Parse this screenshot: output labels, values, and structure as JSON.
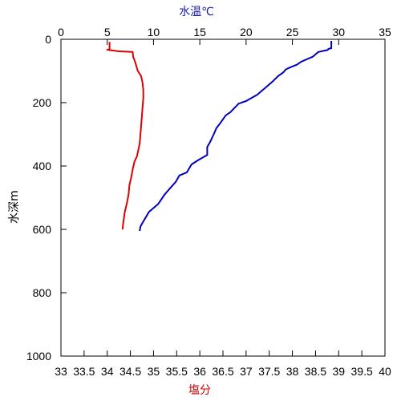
{
  "chart_data": {
    "type": "line",
    "top_axis": {
      "label": "水温℃",
      "color": "#1a1aaa",
      "range": [
        0,
        35
      ],
      "ticks": [
        "0",
        "5",
        "10",
        "15",
        "20",
        "25",
        "30",
        "35"
      ]
    },
    "bottom_axis": {
      "label": "塩分",
      "color": "#cc0000",
      "range": [
        33,
        40
      ],
      "ticks": [
        "33",
        "33.5",
        "34",
        "34.5",
        "35",
        "35.5",
        "36",
        "36.5",
        "37",
        "37.5",
        "38",
        "38.5",
        "39",
        "39.5",
        "40"
      ]
    },
    "left_axis": {
      "label": "水深m",
      "range": [
        0,
        1000
      ],
      "inverted": true,
      "ticks": [
        "0",
        "200",
        "400",
        "600",
        "800",
        "1000"
      ]
    },
    "grid": false,
    "series": [
      {
        "axis": "top",
        "color": "#0000bb",
        "points": [
          [
            29.2,
            5
          ],
          [
            29.2,
            28
          ],
          [
            28.9,
            30
          ],
          [
            28.8,
            34
          ],
          [
            27.8,
            40
          ],
          [
            27.2,
            55
          ],
          [
            26.0,
            70
          ],
          [
            25.5,
            80
          ],
          [
            24.8,
            88
          ],
          [
            24.3,
            95
          ],
          [
            24.0,
            105
          ],
          [
            23.5,
            115
          ],
          [
            22.8,
            135
          ],
          [
            22.0,
            155
          ],
          [
            21.2,
            175
          ],
          [
            20.0,
            195
          ],
          [
            19.2,
            203
          ],
          [
            18.8,
            215
          ],
          [
            18.3,
            230
          ],
          [
            17.8,
            240
          ],
          [
            17.2,
            265
          ],
          [
            16.8,
            280
          ],
          [
            16.5,
            300
          ],
          [
            16.1,
            325
          ],
          [
            15.8,
            340
          ],
          [
            15.8,
            365
          ],
          [
            14.9,
            380
          ],
          [
            14.1,
            395
          ],
          [
            13.6,
            420
          ],
          [
            12.8,
            430
          ],
          [
            12.4,
            450
          ],
          [
            11.8,
            470
          ],
          [
            11.2,
            490
          ],
          [
            10.5,
            520
          ],
          [
            9.5,
            545
          ],
          [
            9.0,
            570
          ],
          [
            8.6,
            590
          ],
          [
            8.5,
            605
          ]
        ]
      },
      {
        "axis": "bottom",
        "color": "#dd0000",
        "points": [
          [
            34.05,
            8
          ],
          [
            34.05,
            32
          ],
          [
            34.0,
            33
          ],
          [
            34.25,
            38
          ],
          [
            34.55,
            40
          ],
          [
            34.56,
            55
          ],
          [
            34.6,
            70
          ],
          [
            34.63,
            85
          ],
          [
            34.66,
            100
          ],
          [
            34.73,
            115
          ],
          [
            34.76,
            135
          ],
          [
            34.78,
            160
          ],
          [
            34.78,
            185
          ],
          [
            34.76,
            220
          ],
          [
            34.74,
            260
          ],
          [
            34.72,
            295
          ],
          [
            34.7,
            330
          ],
          [
            34.67,
            350
          ],
          [
            34.64,
            370
          ],
          [
            34.59,
            385
          ],
          [
            34.55,
            410
          ],
          [
            34.52,
            435
          ],
          [
            34.48,
            460
          ],
          [
            34.46,
            490
          ],
          [
            34.42,
            520
          ],
          [
            34.38,
            545
          ],
          [
            34.35,
            575
          ],
          [
            34.33,
            600
          ]
        ]
      }
    ]
  }
}
